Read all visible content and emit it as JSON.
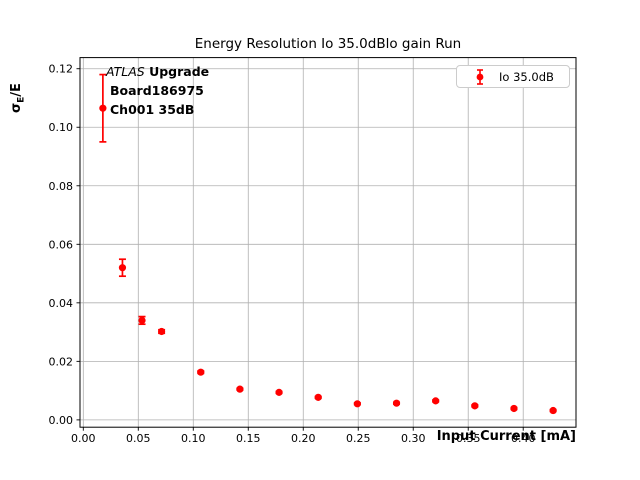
{
  "title": "Energy Resolution Io 35.0dBlo gain Run",
  "axes": {
    "xlabel": "Input Current [mA]",
    "ylabel_sigma": "σ",
    "ylabel_sub": "E",
    "ylabel_rest": "/E"
  },
  "annotation": {
    "experiment": "ATLAS",
    "experiment_suffix": " Upgrade",
    "line2": "Board186975",
    "line3": "Ch001 35dB"
  },
  "legend": {
    "label": "Io 35.0dB"
  },
  "colors": {
    "data": "#ff0000",
    "grid": "#b0b0b0",
    "axis": "#000000",
    "legend_border": "#cccccc"
  },
  "chart_data": {
    "type": "scatter",
    "title": "Energy Resolution Io 35.0dBlo gain Run",
    "xlabel": "Input Current [mA]",
    "ylabel": "σ_E/E",
    "grid": true,
    "legend_position": "upper right",
    "xlim": [
      -0.003,
      0.448
    ],
    "ylim": [
      -0.0025,
      0.1238
    ],
    "x_tick_values": [
      0.0,
      0.05,
      0.1,
      0.15,
      0.2,
      0.25,
      0.3,
      0.35,
      0.4
    ],
    "x_tick_labels": [
      "0.00",
      "0.05",
      "0.10",
      "0.15",
      "0.20",
      "0.25",
      "0.30",
      "0.35",
      "0.40"
    ],
    "y_tick_values": [
      0.0,
      0.02,
      0.04,
      0.06,
      0.08,
      0.1,
      0.12
    ],
    "y_tick_labels": [
      "0.00",
      "0.02",
      "0.04",
      "0.06",
      "0.08",
      "0.10",
      "0.12"
    ],
    "annotations": [
      "ATLAS Upgrade",
      "Board186975",
      "Ch001 35dB"
    ],
    "series": [
      {
        "name": "Io 35.0dB",
        "color": "#ff0000",
        "marker": "circle-with-errorbars",
        "x": [
          0.0178,
          0.0356,
          0.0534,
          0.0712,
          0.1068,
          0.1424,
          0.178,
          0.2136,
          0.2492,
          0.2848,
          0.3204,
          0.356,
          0.3916,
          0.4272
        ],
        "y": [
          0.1065,
          0.052,
          0.034,
          0.0302,
          0.0163,
          0.0105,
          0.0094,
          0.0077,
          0.0055,
          0.0057,
          0.0065,
          0.0048,
          0.0039,
          0.0032
        ],
        "yerr": [
          0.0115,
          0.0029,
          0.0013,
          0.0006,
          0.0004,
          0.0003,
          0.0003,
          0.0003,
          0.0003,
          0.0003,
          0.0003,
          0.0003,
          0.0003,
          0.0003
        ]
      }
    ]
  }
}
